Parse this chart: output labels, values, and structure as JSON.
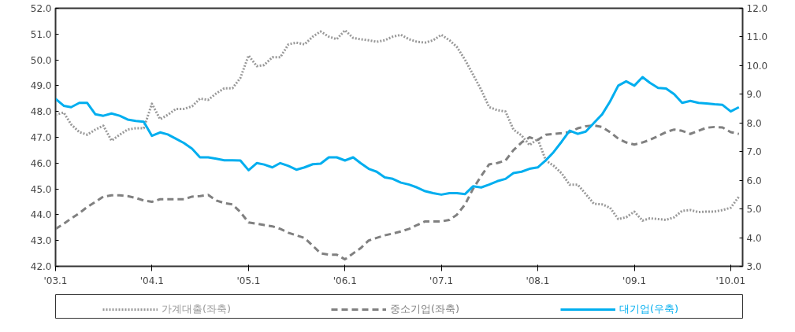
{
  "chart_data": {
    "type": "line",
    "x": [
      "2003-01",
      "2003-02",
      "2003-03",
      "2003-04",
      "2003-05",
      "2003-06",
      "2003-07",
      "2003-08",
      "2003-09",
      "2003-10",
      "2003-11",
      "2003-12",
      "2004-01",
      "2004-02",
      "2004-03",
      "2004-04",
      "2004-05",
      "2004-06",
      "2004-07",
      "2004-08",
      "2004-09",
      "2004-10",
      "2004-11",
      "2004-12",
      "2005-01",
      "2005-02",
      "2005-03",
      "2005-04",
      "2005-05",
      "2005-06",
      "2005-07",
      "2005-08",
      "2005-09",
      "2005-10",
      "2005-11",
      "2005-12",
      "2006-01",
      "2006-02",
      "2006-03",
      "2006-04",
      "2006-05",
      "2006-06",
      "2006-07",
      "2006-08",
      "2006-09",
      "2006-10",
      "2006-11",
      "2006-12",
      "2007-01",
      "2007-02",
      "2007-03",
      "2007-04",
      "2007-05",
      "2007-06",
      "2007-07",
      "2007-08",
      "2007-09",
      "2007-10",
      "2007-11",
      "2007-12",
      "2008-01",
      "2008-02",
      "2008-03",
      "2008-04",
      "2008-05",
      "2008-06",
      "2008-07",
      "2008-08",
      "2008-09",
      "2008-10",
      "2008-11",
      "2008-12",
      "2009-01",
      "2009-02",
      "2009-03",
      "2009-04",
      "2009-05",
      "2009-06",
      "2009-07",
      "2009-08",
      "2009-09",
      "2009-10",
      "2009-11",
      "2009-12",
      "2010-01",
      "2010-02"
    ],
    "series": [
      {
        "name": "가계대출(좌축)",
        "color": "#999999",
        "line_style": "dotted",
        "values": [
          47.87,
          47.96,
          47.5,
          47.2,
          47.1,
          47.3,
          47.45,
          46.87,
          47.1,
          47.3,
          47.35,
          47.35,
          48.3,
          47.7,
          47.87,
          48.1,
          48.1,
          48.2,
          48.5,
          48.45,
          48.7,
          48.9,
          48.9,
          49.3,
          50.17,
          49.76,
          49.8,
          50.1,
          50.1,
          50.6,
          50.67,
          50.6,
          50.9,
          51.1,
          50.9,
          50.8,
          51.15,
          50.85,
          50.8,
          50.76,
          50.7,
          50.76,
          50.9,
          50.97,
          50.8,
          50.7,
          50.67,
          50.76,
          50.97,
          50.76,
          50.5,
          50.0,
          49.43,
          48.84,
          48.17,
          48.05,
          48.0,
          47.3,
          47.07,
          46.7,
          46.93,
          46.1,
          45.9,
          45.6,
          45.16,
          45.16,
          44.8,
          44.42,
          44.4,
          44.27,
          43.83,
          43.9,
          44.12,
          43.77,
          43.86,
          43.83,
          43.8,
          43.9,
          44.15,
          44.18,
          44.1,
          44.12,
          44.12,
          44.18,
          44.27,
          44.7
        ]
      },
      {
        "name": "중소기업(좌축)",
        "color": "#808080",
        "line_style": "dashed",
        "values": [
          43.45,
          43.65,
          43.85,
          44.06,
          44.3,
          44.5,
          44.7,
          44.75,
          44.75,
          44.72,
          44.65,
          44.55,
          44.5,
          44.6,
          44.6,
          44.6,
          44.6,
          44.7,
          44.72,
          44.77,
          44.55,
          44.45,
          44.4,
          44.1,
          43.7,
          43.65,
          43.6,
          43.55,
          43.45,
          43.3,
          43.2,
          43.1,
          42.8,
          42.5,
          42.45,
          42.45,
          42.27,
          42.5,
          42.7,
          43.0,
          43.1,
          43.2,
          43.27,
          43.35,
          43.45,
          43.6,
          43.74,
          43.74,
          43.74,
          43.8,
          44.0,
          44.4,
          45.0,
          45.5,
          45.95,
          46.0,
          46.1,
          46.5,
          46.8,
          47.0,
          46.9,
          47.1,
          47.13,
          47.16,
          47.2,
          47.35,
          47.43,
          47.46,
          47.4,
          47.2,
          46.95,
          46.8,
          46.72,
          46.8,
          46.9,
          47.05,
          47.2,
          47.3,
          47.25,
          47.13,
          47.25,
          47.37,
          47.4,
          47.38,
          47.2,
          47.13
        ]
      },
      {
        "name": "대기업(우축)",
        "color": "#00aeef",
        "line_style": "solid",
        "axis": "y2",
        "values": [
          8.84,
          8.6,
          8.55,
          8.7,
          8.7,
          8.3,
          8.25,
          8.33,
          8.25,
          8.12,
          8.07,
          8.04,
          7.55,
          7.67,
          7.6,
          7.45,
          7.3,
          7.1,
          6.8,
          6.8,
          6.75,
          6.7,
          6.7,
          6.69,
          6.35,
          6.6,
          6.55,
          6.45,
          6.6,
          6.5,
          6.37,
          6.45,
          6.56,
          6.58,
          6.8,
          6.8,
          6.69,
          6.8,
          6.6,
          6.4,
          6.3,
          6.1,
          6.05,
          5.92,
          5.85,
          5.75,
          5.62,
          5.55,
          5.5,
          5.55,
          5.55,
          5.52,
          5.79,
          5.75,
          5.85,
          5.97,
          6.05,
          6.25,
          6.3,
          6.4,
          6.45,
          6.7,
          6.98,
          7.35,
          7.73,
          7.62,
          7.7,
          8.0,
          8.3,
          8.75,
          9.3,
          9.45,
          9.3,
          9.6,
          9.4,
          9.22,
          9.2,
          9.0,
          8.7,
          8.77,
          8.7,
          8.68,
          8.65,
          8.63,
          8.4,
          8.55
        ]
      }
    ],
    "xlim": [
      "2003-01",
      "2010-02-15"
    ],
    "xticks": [
      {
        "value": "2003-01",
        "label": "'03.1"
      },
      {
        "value": "2004-01",
        "label": "'04.1"
      },
      {
        "value": "2005-01",
        "label": "'05.1"
      },
      {
        "value": "2006-01",
        "label": "'06.1"
      },
      {
        "value": "2007-01",
        "label": "'07.1"
      },
      {
        "value": "2008-01",
        "label": "'08.1"
      },
      {
        "value": "2009-01",
        "label": "'09.1"
      },
      {
        "value": "2010-01",
        "label": "'10.01"
      }
    ],
    "ylim": [
      42,
      52
    ],
    "yticks": [
      {
        "value": 42,
        "label": "42.0"
      },
      {
        "value": 43,
        "label": "43.0"
      },
      {
        "value": 44,
        "label": "44.0"
      },
      {
        "value": 45,
        "label": "45.0"
      },
      {
        "value": 46,
        "label": "46.0"
      },
      {
        "value": 47,
        "label": "47.0"
      },
      {
        "value": 48,
        "label": "48.0"
      },
      {
        "value": 49,
        "label": "49.0"
      },
      {
        "value": 50,
        "label": "50.0"
      },
      {
        "value": 51,
        "label": "51.0"
      },
      {
        "value": 52,
        "label": "52.0"
      }
    ],
    "y2lim": [
      3,
      12
    ],
    "y2ticks": [
      {
        "value": 3,
        "label": "3.0"
      },
      {
        "value": 4,
        "label": "4.0"
      },
      {
        "value": 5,
        "label": "5.0"
      },
      {
        "value": 6,
        "label": "6.0"
      },
      {
        "value": 7,
        "label": "7.0"
      },
      {
        "value": 8,
        "label": "8.0"
      },
      {
        "value": 9,
        "label": "9.0"
      },
      {
        "value": 10,
        "label": "10.0"
      },
      {
        "value": 11,
        "label": "11.0"
      },
      {
        "value": 12,
        "label": "12.0"
      }
    ],
    "grid": false,
    "legend": "bottom",
    "marker": "none"
  }
}
